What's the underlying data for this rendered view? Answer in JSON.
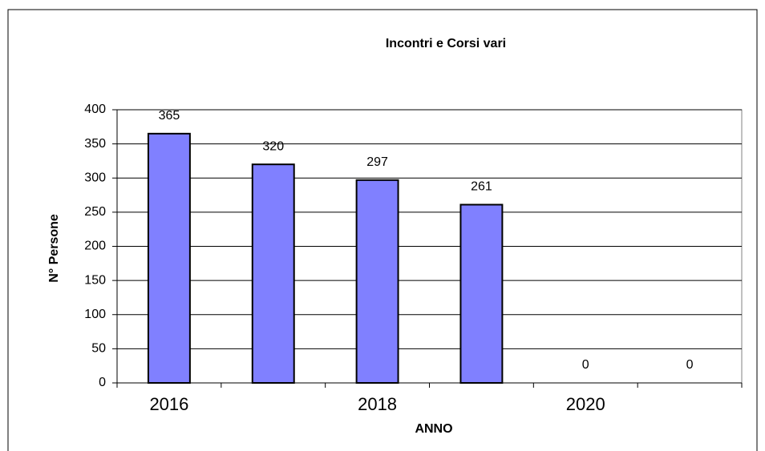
{
  "chart_data": {
    "type": "bar",
    "title": "Incontri e Corsi vari",
    "x_label": "ANNO",
    "y_label": "N° Persone",
    "categories": [
      "2016",
      null,
      "2018",
      null,
      "2020",
      null
    ],
    "values": [
      365,
      320,
      297,
      261,
      0,
      0
    ],
    "color": "#8080ff",
    "ylim": [
      0,
      400
    ],
    "yticks": [
      0,
      50,
      100,
      150,
      200,
      250,
      300,
      350,
      400
    ],
    "grid": true
  }
}
